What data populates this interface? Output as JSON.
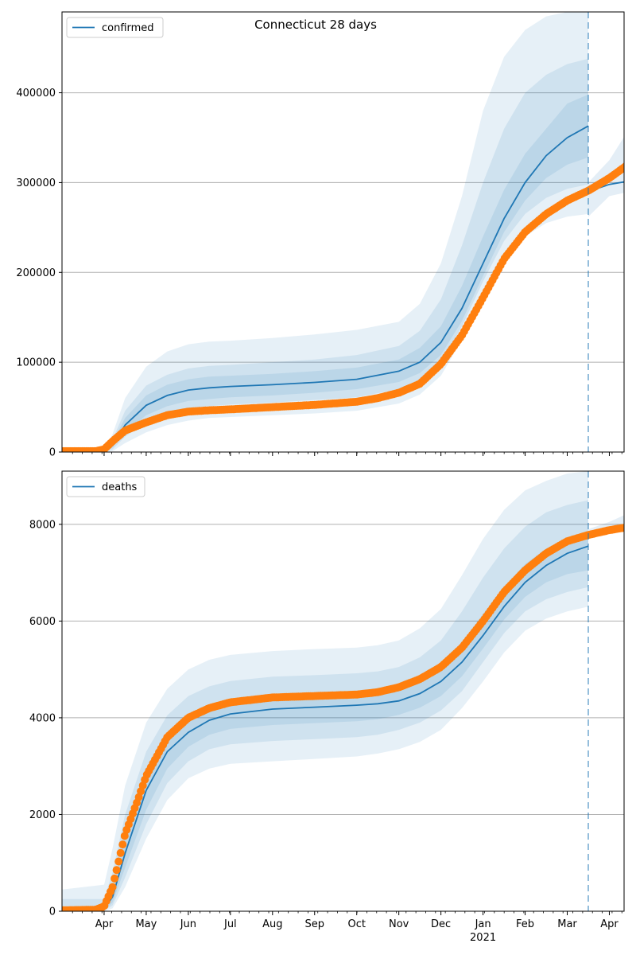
{
  "chart_data": [
    {
      "type": "line",
      "title": "Connecticut 28 days",
      "legend": {
        "label": "confirmed",
        "placement": "top-left"
      },
      "grid": "horizontal",
      "ylim": [
        0,
        490000
      ],
      "yticks": [
        0,
        100000,
        200000,
        300000,
        400000
      ],
      "ytick_labels": [
        "0",
        "100000",
        "200000",
        "300000",
        "400000"
      ],
      "forecast_start_month": 12.5,
      "model_series": {
        "name": "confirmed",
        "x": [
          0,
          1,
          1.2,
          1.5,
          2,
          2.5,
          3,
          3.5,
          4,
          5,
          6,
          7,
          8,
          8.5,
          9,
          9.5,
          10,
          10.5,
          11,
          11.5,
          12,
          12.5
        ],
        "y": [
          1000,
          1000,
          8000,
          30000,
          52000,
          63000,
          69000,
          71500,
          73000,
          75000,
          77500,
          81000,
          90000,
          100000,
          122000,
          160000,
          210000,
          260000,
          300000,
          330000,
          350000,
          363000
        ],
        "x_after": [
          12.5,
          13.0,
          13.5
        ],
        "y_after": [
          290000,
          298000,
          302000
        ]
      },
      "observed_series": {
        "x": [
          0,
          0.8,
          1.0,
          1.2,
          1.5,
          2.0,
          2.5,
          3.0,
          3.5,
          4.0,
          5.0,
          6.0,
          7.0,
          7.5,
          8.0,
          8.5,
          9.0,
          9.5,
          10.0,
          10.5,
          11.0,
          11.5,
          12.0,
          12.5,
          13.0,
          13.5
        ],
        "y": [
          1000,
          1000,
          3000,
          12000,
          24000,
          33000,
          41000,
          45000,
          46500,
          47500,
          50000,
          52500,
          56000,
          60000,
          66000,
          76000,
          98000,
          130000,
          172000,
          215000,
          245000,
          265000,
          280000,
          291000,
          305000,
          322000
        ]
      },
      "bands": {
        "outer_lower": [
          0,
          0,
          1000,
          10000,
          22000,
          30000,
          35000,
          38000,
          39000,
          41000,
          43000,
          46000,
          54000,
          64000,
          85000,
          125000,
          175000,
          215000,
          240000,
          255000,
          262000,
          265000
        ],
        "outer_upper": [
          3000,
          3000,
          20000,
          60000,
          95000,
          112000,
          120000,
          123000,
          124000,
          127000,
          131000,
          136000,
          145000,
          165000,
          210000,
          285000,
          380000,
          440000,
          470000,
          485000,
          490000,
          490000
        ],
        "mid_lower": [
          0,
          0,
          3000,
          17000,
          33000,
          43000,
          49000,
          51000,
          53000,
          55000,
          58000,
          61000,
          70000,
          80000,
          100000,
          140000,
          190000,
          235000,
          265000,
          283000,
          293000,
          298000
        ],
        "mid_upper": [
          2000,
          2000,
          14000,
          46000,
          74000,
          86000,
          93000,
          96000,
          97000,
          100000,
          103000,
          108000,
          118000,
          135000,
          170000,
          230000,
          300000,
          360000,
          400000,
          420000,
          432000,
          438000
        ],
        "inner_lower": [
          500,
          500,
          5000,
          22000,
          41000,
          51000,
          57000,
          59000,
          61000,
          63000,
          66000,
          70000,
          78000,
          88000,
          108000,
          146000,
          196000,
          245000,
          280000,
          305000,
          320000,
          328000
        ],
        "inner_upper": [
          1500,
          1500,
          11000,
          38000,
          63000,
          75000,
          81000,
          84000,
          85000,
          87000,
          90000,
          94000,
          103000,
          116000,
          140000,
          185000,
          240000,
          292000,
          332000,
          360000,
          388000,
          398000
        ]
      },
      "after_band": {
        "x": [
          12.5,
          13.0,
          13.5
        ],
        "lower": [
          262000,
          285000,
          290000
        ],
        "upper": [
          300000,
          325000,
          362000
        ]
      }
    },
    {
      "type": "line",
      "title": "",
      "legend": {
        "label": "deaths",
        "placement": "top-left"
      },
      "grid": "horizontal",
      "ylim": [
        0,
        9100
      ],
      "yticks": [
        0,
        2000,
        4000,
        6000,
        8000
      ],
      "ytick_labels": [
        "0",
        "2000",
        "4000",
        "6000",
        "8000"
      ],
      "forecast_start_month": 12.5,
      "xtick_labels": [
        "Apr",
        "May",
        "Jun",
        "Jul",
        "Aug",
        "Sep",
        "Oct",
        "Nov",
        "Dec",
        "Jan",
        "Feb",
        "Mar",
        "Apr"
      ],
      "xtick_positions": [
        1,
        2,
        3,
        4,
        5,
        6,
        7,
        8,
        9,
        10,
        11,
        12,
        13
      ],
      "year_label": "2021",
      "model_series": {
        "name": "deaths",
        "x": [
          0,
          1,
          1.2,
          1.5,
          2,
          2.5,
          3,
          3.5,
          4,
          5,
          6,
          7,
          7.5,
          8,
          8.5,
          9,
          9.5,
          10,
          10.5,
          11,
          11.5,
          12,
          12.5
        ],
        "y": [
          20,
          50,
          300,
          1200,
          2500,
          3300,
          3700,
          3950,
          4080,
          4180,
          4220,
          4260,
          4290,
          4350,
          4500,
          4750,
          5150,
          5700,
          6300,
          6800,
          7150,
          7400,
          7550
        ]
      },
      "observed_series": {
        "x": [
          0,
          0.8,
          1.0,
          1.2,
          1.5,
          1.8,
          2.0,
          2.5,
          3.0,
          3.5,
          4.0,
          5.0,
          6.0,
          7.0,
          7.5,
          8.0,
          8.5,
          9.0,
          9.5,
          10.0,
          10.5,
          11.0,
          11.5,
          12.0,
          12.5,
          13.0,
          13.5
        ],
        "y": [
          20,
          30,
          100,
          500,
          1600,
          2300,
          2800,
          3600,
          4000,
          4200,
          4320,
          4420,
          4450,
          4480,
          4530,
          4630,
          4800,
          5050,
          5450,
          6000,
          6600,
          7050,
          7400,
          7650,
          7780,
          7880,
          7950
        ]
      },
      "bands": {
        "outer_lower": [
          0,
          0,
          60,
          500,
          1500,
          2300,
          2750,
          2950,
          3050,
          3100,
          3150,
          3200,
          3260,
          3350,
          3500,
          3750,
          4200,
          4750,
          5350,
          5800,
          6050,
          6200,
          6300
        ],
        "outer_upper": [
          450,
          550,
          1300,
          2600,
          3900,
          4600,
          5000,
          5200,
          5300,
          5380,
          5420,
          5450,
          5500,
          5600,
          5850,
          6250,
          6950,
          7700,
          8300,
          8700,
          8900,
          9050,
          9100
        ],
        "mid_lower": [
          0,
          10,
          120,
          700,
          1800,
          2650,
          3100,
          3350,
          3450,
          3520,
          3560,
          3600,
          3650,
          3750,
          3900,
          4150,
          4550,
          5150,
          5750,
          6200,
          6450,
          6600,
          6700
        ],
        "mid_upper": [
          250,
          250,
          800,
          2000,
          3300,
          4050,
          4450,
          4650,
          4760,
          4850,
          4880,
          4920,
          4960,
          5050,
          5250,
          5600,
          6200,
          6900,
          7500,
          7950,
          8250,
          8400,
          8500
        ],
        "inner_lower": [
          5,
          25,
          180,
          900,
          2100,
          2950,
          3400,
          3650,
          3770,
          3850,
          3890,
          3930,
          3970,
          4060,
          4210,
          4450,
          4860,
          5430,
          6030,
          6500,
          6800,
          6970,
          7050
        ],
        "inner_upper": [
          80,
          100,
          450,
          1550,
          2900,
          3650,
          4050,
          4270,
          4380,
          4480,
          4520,
          4560,
          4610,
          4680,
          4840,
          5120,
          5550,
          6150,
          6700,
          7180,
          7500,
          7700,
          7850
        ]
      },
      "after_band": {
        "x": [
          12.5,
          13.0,
          13.5
        ],
        "lower": [
          7700,
          7850,
          7950
        ],
        "upper": [
          7900,
          8050,
          8250
        ]
      }
    }
  ],
  "colors": {
    "model_line": "#1f77b4",
    "band": "#1f77b4",
    "observed_dots": "#ff7f0e",
    "grid": "#b0b0b0",
    "forecast_line": "#1f77b4"
  }
}
